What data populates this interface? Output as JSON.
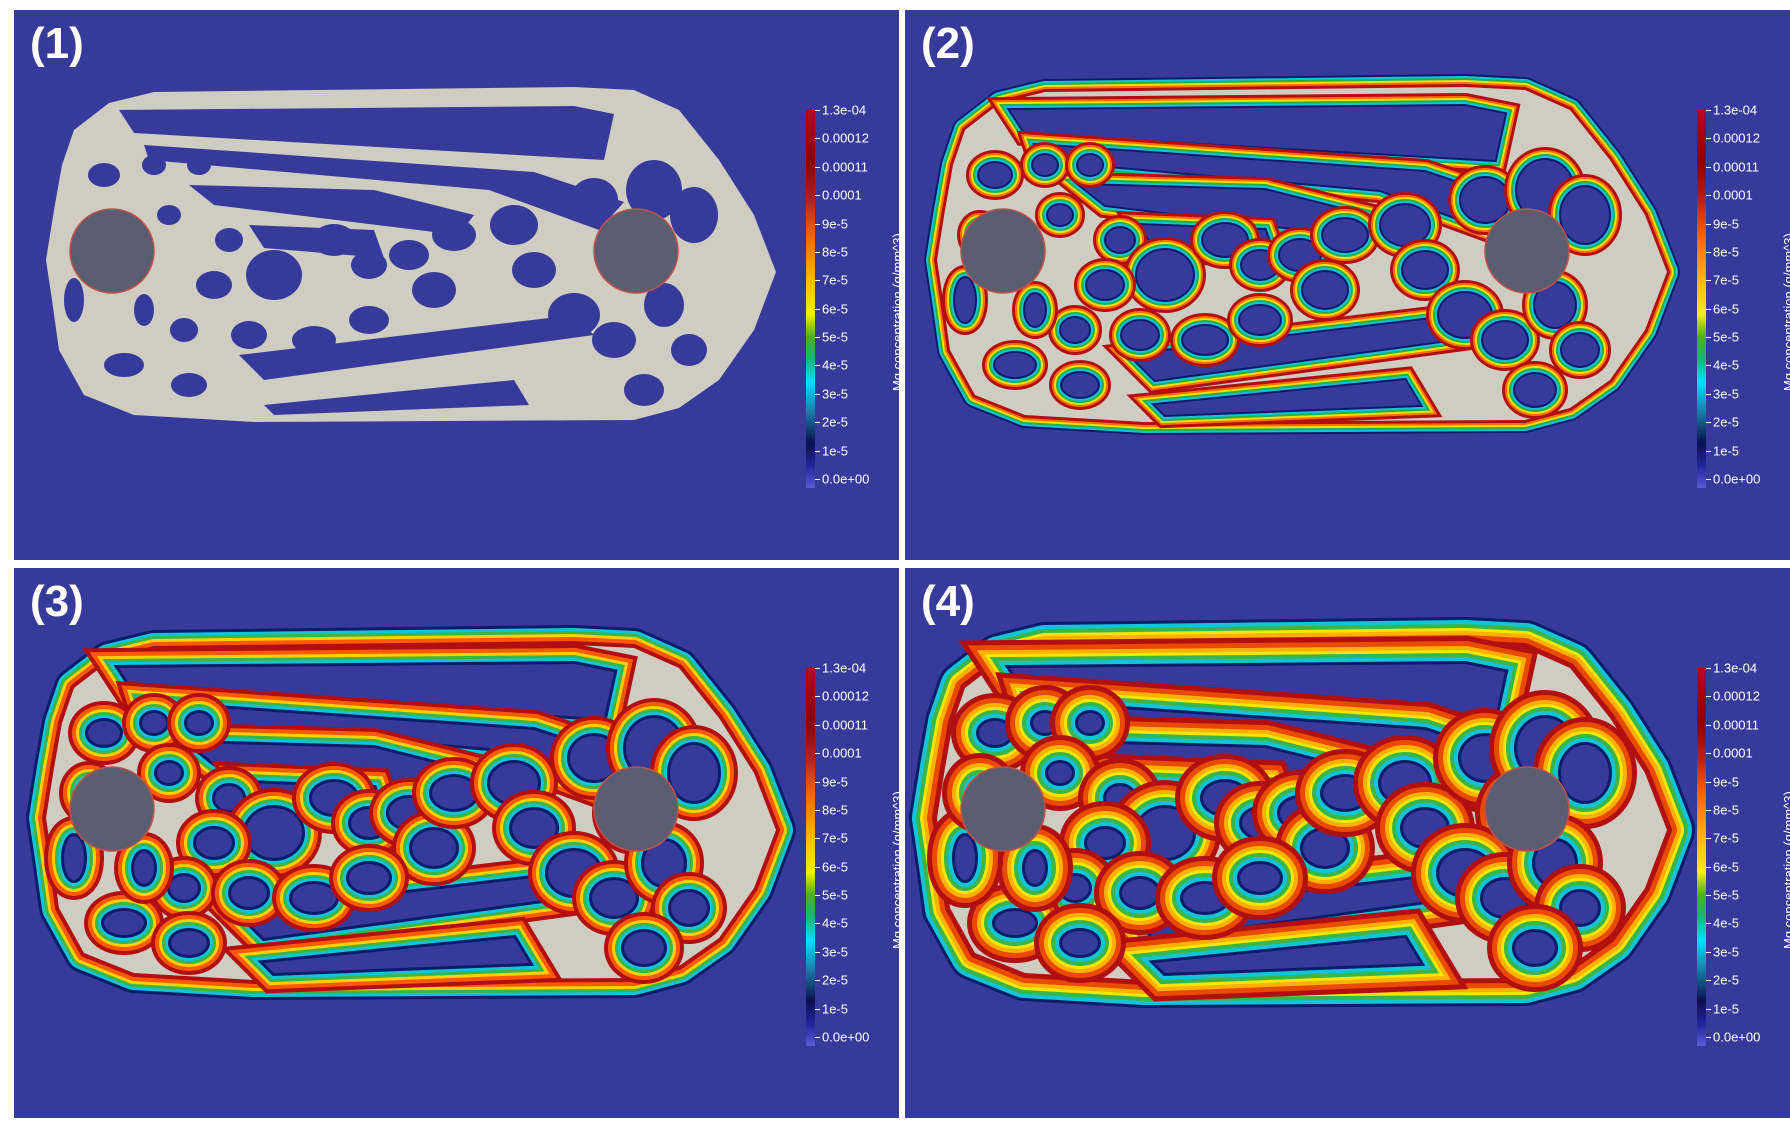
{
  "panels": [
    {
      "label": "(1)",
      "stage": 0
    },
    {
      "label": "(2)",
      "stage": 1
    },
    {
      "label": "(3)",
      "stage": 2
    },
    {
      "label": "(4)",
      "stage": 3
    }
  ],
  "colorbar": {
    "title": "Mg concentration (g/mm^3)",
    "labels": [
      "1.3e-04",
      "0.00012",
      "0.00011",
      "0.0001",
      "9e-5",
      "8e-5",
      "7e-5",
      "6e-5",
      "5e-5",
      "4e-5",
      "3e-5",
      "2e-5",
      "1e-5",
      "0.0e+00"
    ]
  },
  "colors": {
    "background": "#383a9b",
    "material": "#cfccc2",
    "pin": "#5b5e6e",
    "pin_stroke": "#c0504d"
  }
}
